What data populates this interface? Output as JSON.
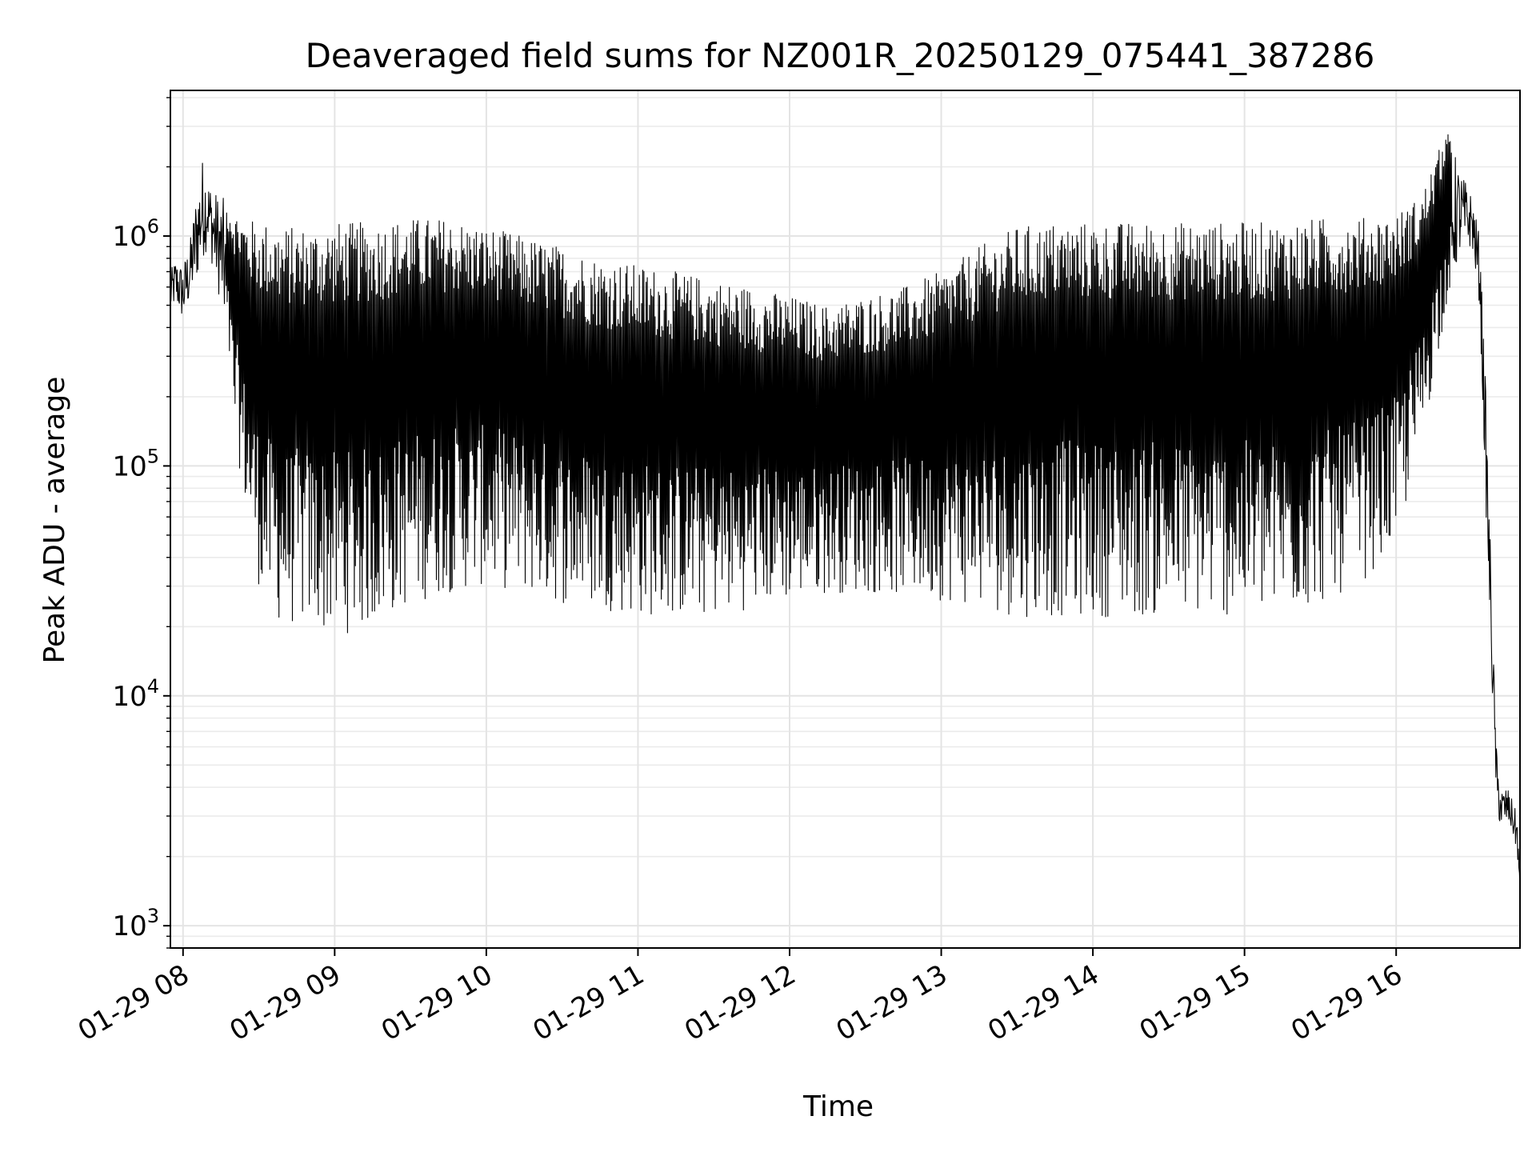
{
  "chart_data": {
    "type": "line",
    "title": "Deaveraged field sums for NZ001R_20250129_075441_387286",
    "xlabel": "Time",
    "ylabel": "Peak ADU - average",
    "yscale": "log",
    "grid": true,
    "xlim": [
      "2025-01-29 07:55",
      "2025-01-29 16:49"
    ],
    "ylim": [
      800,
      4300000
    ],
    "x_ticks": [
      {
        "value": "2025-01-29 08:00",
        "label": "01-29 08"
      },
      {
        "value": "2025-01-29 09:00",
        "label": "01-29 09"
      },
      {
        "value": "2025-01-29 10:00",
        "label": "01-29 10"
      },
      {
        "value": "2025-01-29 11:00",
        "label": "01-29 11"
      },
      {
        "value": "2025-01-29 12:00",
        "label": "01-29 12"
      },
      {
        "value": "2025-01-29 13:00",
        "label": "01-29 13"
      },
      {
        "value": "2025-01-29 14:00",
        "label": "01-29 14"
      },
      {
        "value": "2025-01-29 15:00",
        "label": "01-29 15"
      },
      {
        "value": "2025-01-29 16:00",
        "label": "01-29 16"
      }
    ],
    "y_ticks": [
      {
        "value": 1000,
        "base": "10",
        "exp": "3"
      },
      {
        "value": 10000,
        "base": "10",
        "exp": "4"
      },
      {
        "value": 100000,
        "base": "10",
        "exp": "5"
      },
      {
        "value": 1000000,
        "base": "10",
        "exp": "6"
      }
    ],
    "series_style": {
      "color": "#000000"
    },
    "series": [
      {
        "x": [
          "2025-01-29 07:55",
          "2025-01-29 07:57",
          "2025-01-29 08:00",
          "2025-01-29 08:03",
          "2025-01-29 08:05",
          "2025-01-29 08:08",
          "2025-01-29 08:10",
          "2025-01-29 08:12",
          "2025-01-29 08:15",
          "2025-01-29 08:18",
          "2025-01-29 08:20",
          "2025-01-29 08:25",
          "2025-01-29 08:30",
          "2025-01-29 08:35",
          "2025-01-29 08:40",
          "2025-01-29 08:45",
          "2025-01-29 08:50",
          "2025-01-29 09:00",
          "2025-01-29 09:15",
          "2025-01-29 09:30",
          "2025-01-29 09:45",
          "2025-01-29 10:00",
          "2025-01-29 10:15",
          "2025-01-29 10:30",
          "2025-01-29 10:45",
          "2025-01-29 11:00",
          "2025-01-29 11:15",
          "2025-01-29 11:30",
          "2025-01-29 11:45",
          "2025-01-29 12:00",
          "2025-01-29 12:15",
          "2025-01-29 12:30",
          "2025-01-29 12:45",
          "2025-01-29 13:00",
          "2025-01-29 13:15",
          "2025-01-29 13:30",
          "2025-01-29 13:45",
          "2025-01-29 14:00",
          "2025-01-29 14:15",
          "2025-01-29 14:30",
          "2025-01-29 14:45",
          "2025-01-29 15:00",
          "2025-01-29 15:15",
          "2025-01-29 15:30",
          "2025-01-29 15:45",
          "2025-01-29 16:00",
          "2025-01-29 16:10",
          "2025-01-29 16:20",
          "2025-01-29 16:25",
          "2025-01-29 16:30",
          "2025-01-29 16:33",
          "2025-01-29 16:35",
          "2025-01-29 16:37",
          "2025-01-29 16:39",
          "2025-01-29 16:40",
          "2025-01-29 16:42",
          "2025-01-29 16:44",
          "2025-01-29 16:46",
          "2025-01-29 16:48",
          "2025-01-29 16:49"
        ],
        "y_low": [
          450000,
          500000,
          420000,
          520000,
          600000,
          800000,
          900000,
          700000,
          500000,
          300000,
          150000,
          60000,
          30000,
          22000,
          20000,
          20000,
          20000,
          18000,
          20000,
          25000,
          28000,
          30000,
          28000,
          25000,
          24000,
          22000,
          22000,
          22000,
          24000,
          26000,
          28000,
          28000,
          27000,
          26000,
          24000,
          22000,
          22000,
          22000,
          22000,
          22000,
          22000,
          22000,
          22000,
          25000,
          30000,
          45000,
          120000,
          500000,
          800000,
          900000,
          500000,
          100000,
          20000,
          5000,
          3000,
          2500,
          2800,
          2500,
          2000,
          1200
        ],
        "y_high": [
          700000,
          800000,
          750000,
          1000000,
          1500000,
          2300000,
          1800000,
          1600000,
          1500000,
          1400000,
          1300000,
          1200000,
          1150000,
          1150000,
          1100000,
          1100000,
          1100000,
          1150000,
          1150000,
          1200000,
          1200000,
          1100000,
          1000000,
          900000,
          800000,
          750000,
          700000,
          650000,
          600000,
          550000,
          500000,
          550000,
          600000,
          700000,
          900000,
          1100000,
          1150000,
          1150000,
          1150000,
          1150000,
          1150000,
          1150000,
          1150000,
          1200000,
          1200000,
          1250000,
          1500000,
          2900000,
          2000000,
          1500000,
          1000000,
          300000,
          60000,
          10000,
          5000,
          4000,
          4000,
          3500,
          3000,
          1500
        ]
      }
    ]
  }
}
